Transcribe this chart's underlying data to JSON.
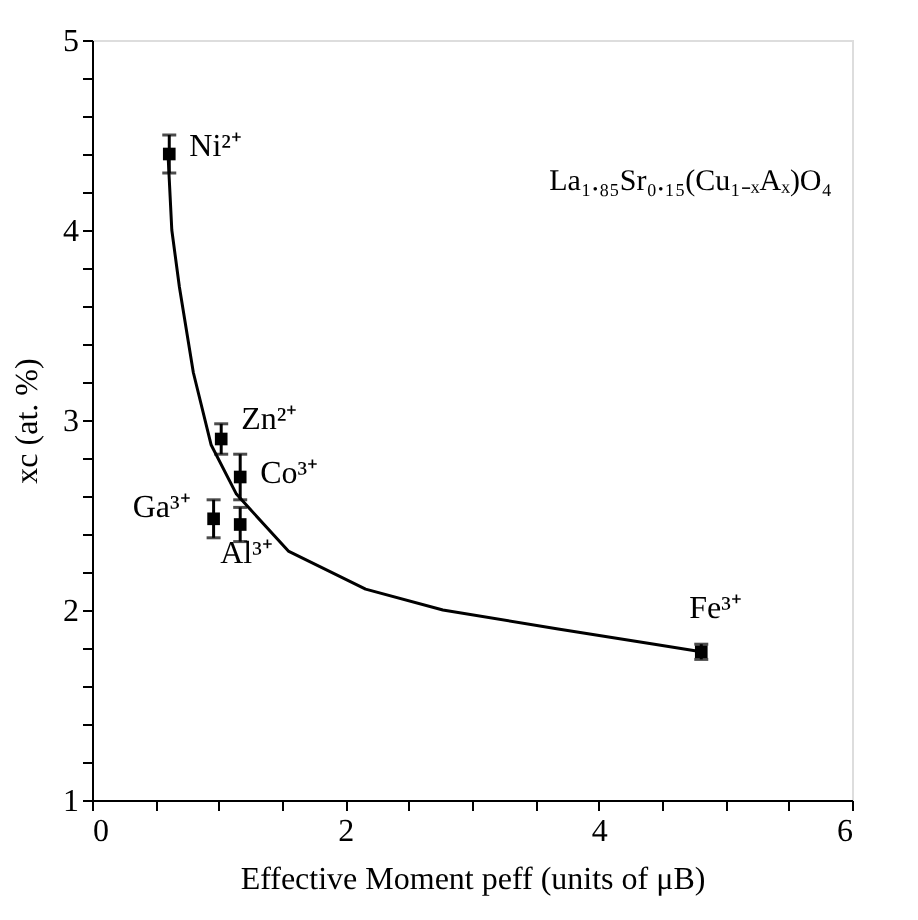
{
  "chart_data": {
    "type": "scatter",
    "xlabel": "Effective Moment peff (units of μB)",
    "ylabel": "xc (at. %)",
    "xlim": [
      0,
      6
    ],
    "ylim": [
      1,
      5
    ],
    "xticks": [
      0,
      {
        "value": 0.5,
        "label": null
      },
      {
        "value": 1,
        "label": null
      },
      {
        "value": 1.5,
        "label": null
      },
      2,
      {
        "value": 2.5,
        "label": null
      },
      {
        "value": 3,
        "label": null
      },
      {
        "value": 3.5,
        "label": null
      },
      4,
      {
        "value": 4.5,
        "label": null
      },
      {
        "value": 5,
        "label": null
      },
      {
        "value": 5.5,
        "label": null
      },
      6
    ],
    "yticks": [
      1,
      {
        "value": 1.2,
        "label": null
      },
      {
        "value": 1.4,
        "label": null
      },
      {
        "value": 1.6,
        "label": null
      },
      {
        "value": 1.8,
        "label": null
      },
      2,
      {
        "value": 2.2,
        "label": null
      },
      {
        "value": 2.4,
        "label": null
      },
      {
        "value": 2.6,
        "label": null
      },
      {
        "value": 2.8,
        "label": null
      },
      3,
      {
        "value": 3.2,
        "label": null
      },
      {
        "value": 3.4,
        "label": null
      },
      {
        "value": 3.6,
        "label": null
      },
      {
        "value": 3.8,
        "label": null
      },
      4,
      {
        "value": 4.2,
        "label": null
      },
      {
        "value": 4.4,
        "label": null
      },
      {
        "value": 4.6,
        "label": null
      },
      {
        "value": 4.8,
        "label": null
      },
      5
    ],
    "grid": false,
    "marker": "square",
    "series": [
      {
        "color": "#000000",
        "x": [
          0.61,
          1.02,
          1.17,
          0.96,
          1.17,
          4.81
        ],
        "values": [
          4.4,
          2.9,
          2.7,
          2.48,
          2.45,
          1.78
        ],
        "errors": [
          0.1,
          0.08,
          0.12,
          0.1,
          0.09,
          0.04
        ]
      },
      {
        "type": "line",
        "color": "#000000",
        "line_style": "solid",
        "marker": "none",
        "x": [
          0.6,
          0.63,
          0.69,
          0.8,
          0.94,
          1.14,
          1.55,
          2.16,
          2.77,
          3.68,
          4.44,
          4.81
        ],
        "values": [
          4.4,
          4.0,
          3.7,
          3.25,
          2.87,
          2.61,
          2.31,
          2.11,
          2.0,
          1.9,
          1.82,
          1.78
        ]
      }
    ],
    "annotations": [
      {
        "text": "Ni²⁺",
        "x": 0.61,
        "y": 4.4
      },
      {
        "text": "Zn²⁺",
        "x": 1.02,
        "y": 2.9
      },
      {
        "text": "Co³⁺",
        "x": 1.17,
        "y": 2.7
      },
      {
        "text": "Ga³⁺",
        "x": 0.96,
        "y": 2.48
      },
      {
        "text": "Al³⁺",
        "x": 1.17,
        "y": 2.45
      },
      {
        "text": "Fe³⁺",
        "x": 4.81,
        "y": 1.78
      },
      "La₁.₈₅Sr₀.₁₅(Cu₁₋ₓAₓ)O₄"
    ]
  }
}
